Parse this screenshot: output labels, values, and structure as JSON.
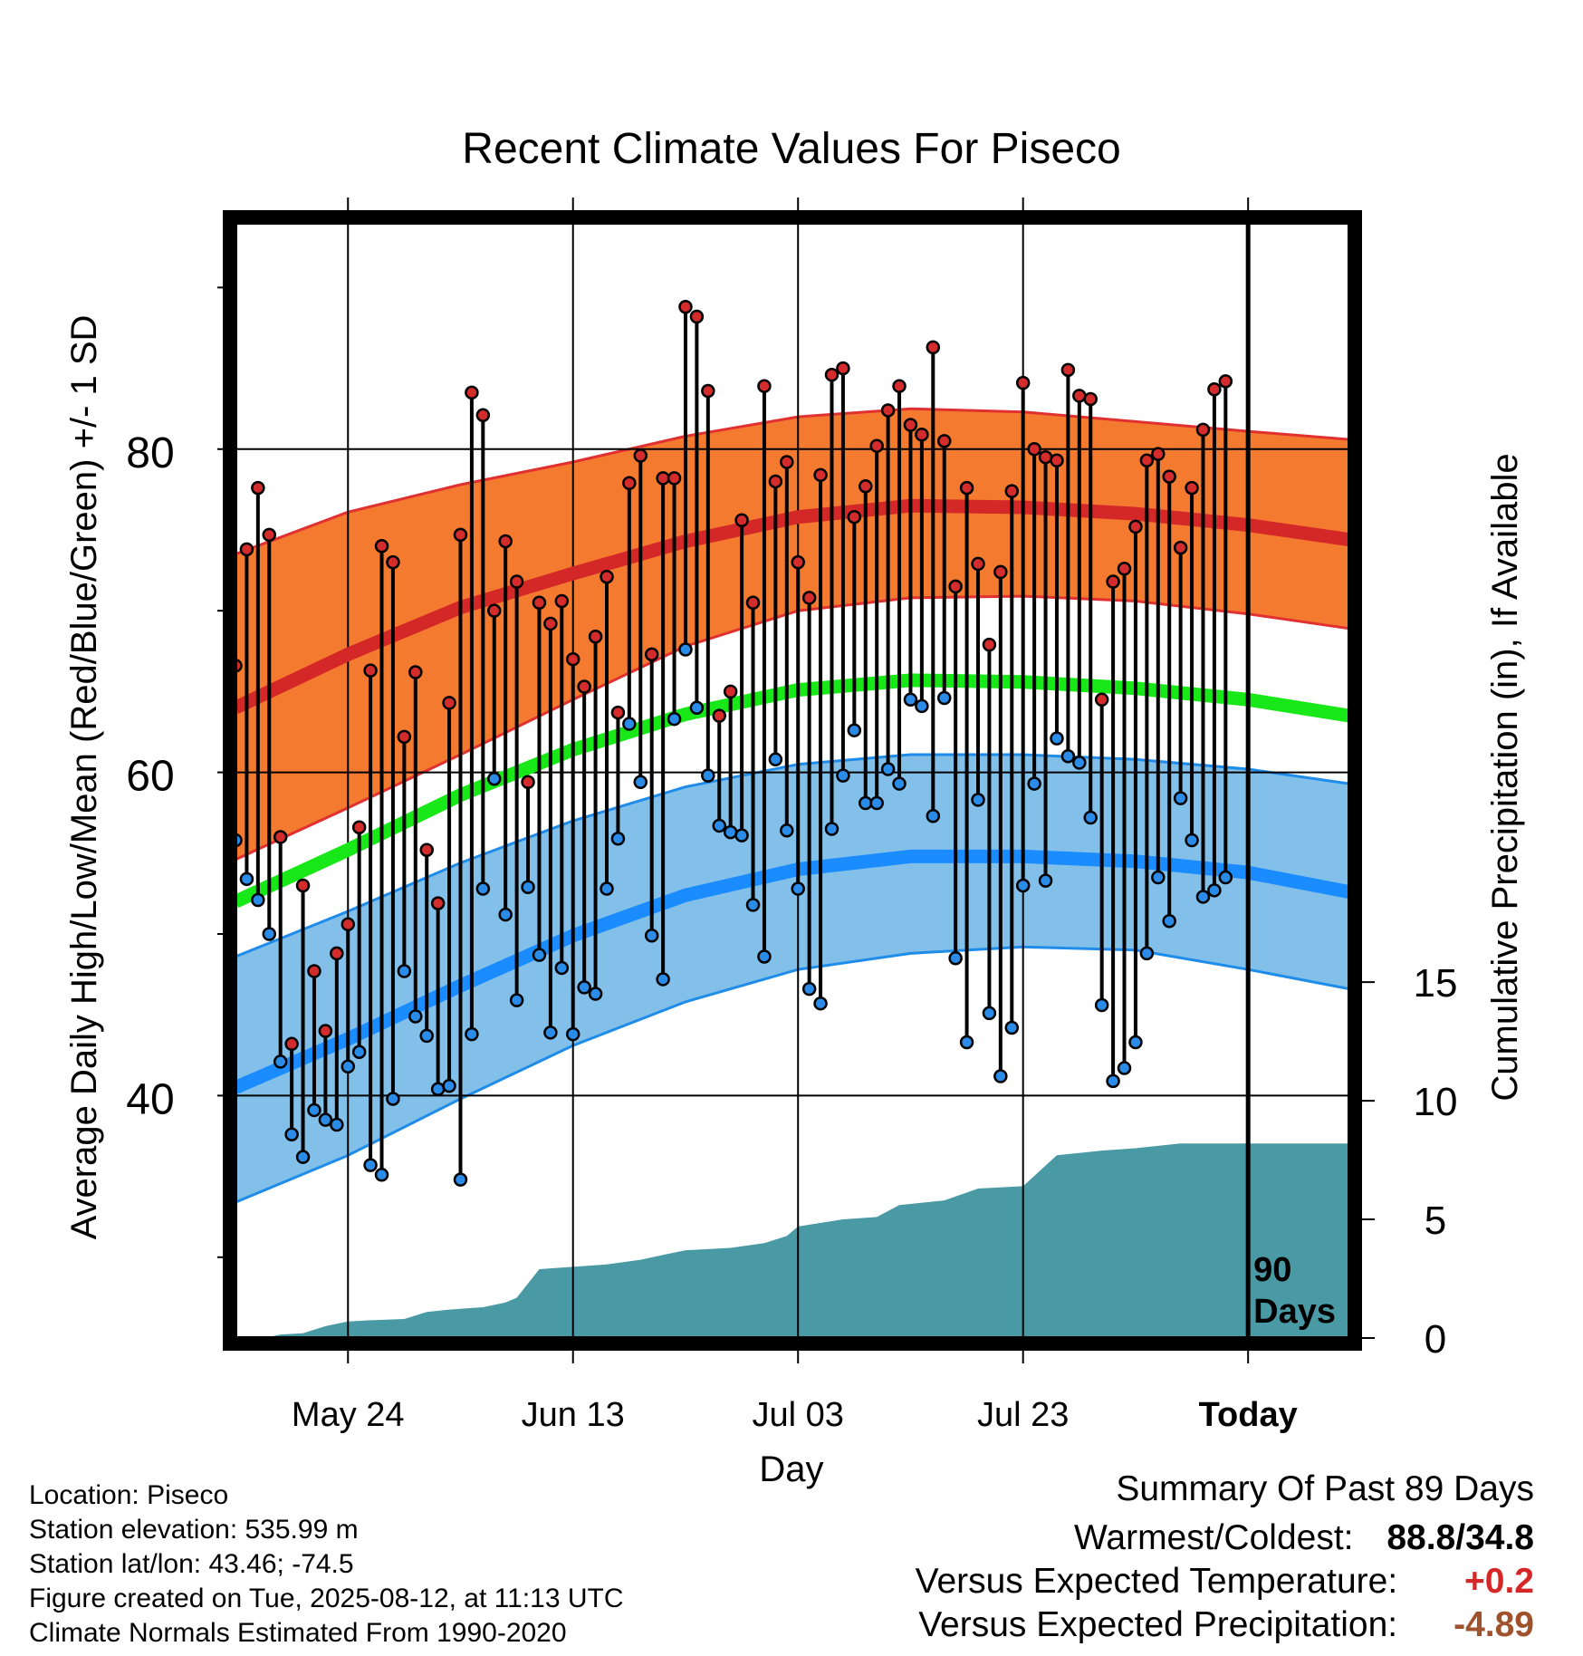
{
  "chart_data": {
    "type": "line",
    "title": "Recent Climate Values For Piseco",
    "xlabel": "Day",
    "ylabel_left": "Average Daily High/Low/Mean (Red/Blue/Green) +/- 1 SD",
    "ylabel_right": "Cumulative Precipitation (in), If Available",
    "x_tick_labels": [
      "May 24",
      "Jun 13",
      "Jul 03",
      "Jul 23",
      "Today"
    ],
    "x_tick_days": [
      10,
      30,
      50,
      70,
      90
    ],
    "xlim": [
      0,
      99
    ],
    "ylim_left": [
      25,
      94
    ],
    "yticks_left": [
      40,
      60,
      80
    ],
    "ylim_right": [
      0,
      47
    ],
    "yticks_right": [
      0,
      5,
      10,
      15
    ],
    "today_day": 90,
    "today_label_line1": "90",
    "today_label_line2": "Days",
    "grid": true,
    "daily_high": [
      66.6,
      73.8,
      77.6,
      74.7,
      56.0,
      43.2,
      53.0,
      47.7,
      44.0,
      48.8,
      50.6,
      56.6,
      66.3,
      74.0,
      73.0,
      62.2,
      66.2,
      55.2,
      51.9,
      64.3,
      74.7,
      83.5,
      82.1,
      70.0,
      74.3,
      71.8,
      59.4,
      70.5,
      69.2,
      70.6,
      67.0,
      65.3,
      68.4,
      72.1,
      63.7,
      77.9,
      79.6,
      67.3,
      78.2,
      78.2,
      88.8,
      88.2,
      83.6,
      63.5,
      65.0,
      75.6,
      70.5,
      83.9,
      78.0,
      79.2,
      73.0,
      70.8,
      78.4,
      84.6,
      85.0,
      75.8,
      77.7,
      80.2,
      82.4,
      83.9,
      81.5,
      80.9,
      86.3,
      80.5,
      71.5,
      77.6,
      72.9,
      67.9,
      72.4,
      77.4,
      84.1,
      80.0,
      79.5,
      79.3,
      84.9,
      83.3,
      83.1,
      64.5,
      71.8,
      72.6,
      75.2,
      79.3,
      79.7,
      78.3,
      73.9,
      77.6,
      81.2,
      83.7,
      84.2
    ],
    "daily_low": [
      55.8,
      53.4,
      52.1,
      50.0,
      42.1,
      37.6,
      36.2,
      39.1,
      38.5,
      38.2,
      41.8,
      42.7,
      35.7,
      35.1,
      39.8,
      47.7,
      44.9,
      43.7,
      40.4,
      40.6,
      34.8,
      43.8,
      52.8,
      59.6,
      51.2,
      45.9,
      52.9,
      48.7,
      43.9,
      47.9,
      43.8,
      46.7,
      46.3,
      52.8,
      55.9,
      63.0,
      59.4,
      49.9,
      47.2,
      63.3,
      67.6,
      64.0,
      59.8,
      56.7,
      56.3,
      56.1,
      51.8,
      48.6,
      60.8,
      56.4,
      52.8,
      46.6,
      45.7,
      56.5,
      59.8,
      62.6,
      58.1,
      58.1,
      60.2,
      59.3,
      64.5,
      64.1,
      57.3,
      64.6,
      48.5,
      43.3,
      58.3,
      45.1,
      41.2,
      44.2,
      53.0,
      59.3,
      53.3,
      62.1,
      61.0,
      60.6,
      57.2,
      45.6,
      40.9,
      41.7,
      43.3,
      48.8,
      53.5,
      50.8,
      58.4,
      55.8,
      52.3,
      52.7,
      53.5
    ],
    "normal_high": [
      {
        "x": 0,
        "y": 64.0
      },
      {
        "x": 10,
        "y": 67.3
      },
      {
        "x": 20,
        "y": 70.2
      },
      {
        "x": 30,
        "y": 72.3
      },
      {
        "x": 40,
        "y": 74.3
      },
      {
        "x": 50,
        "y": 75.8
      },
      {
        "x": 60,
        "y": 76.5
      },
      {
        "x": 70,
        "y": 76.4
      },
      {
        "x": 80,
        "y": 76.0
      },
      {
        "x": 90,
        "y": 75.3
      },
      {
        "x": 99,
        "y": 74.4
      }
    ],
    "normal_high_upper": [
      {
        "x": 0,
        "y": 73.5
      },
      {
        "x": 10,
        "y": 76.1
      },
      {
        "x": 20,
        "y": 77.8
      },
      {
        "x": 30,
        "y": 79.2
      },
      {
        "x": 40,
        "y": 80.8
      },
      {
        "x": 50,
        "y": 82.0
      },
      {
        "x": 60,
        "y": 82.5
      },
      {
        "x": 70,
        "y": 82.3
      },
      {
        "x": 80,
        "y": 81.7
      },
      {
        "x": 90,
        "y": 81.1
      },
      {
        "x": 99,
        "y": 80.6
      }
    ],
    "normal_high_lower": [
      {
        "x": 0,
        "y": 54.6
      },
      {
        "x": 10,
        "y": 57.8
      },
      {
        "x": 20,
        "y": 61.1
      },
      {
        "x": 30,
        "y": 64.5
      },
      {
        "x": 40,
        "y": 67.8
      },
      {
        "x": 50,
        "y": 70.0
      },
      {
        "x": 60,
        "y": 70.8
      },
      {
        "x": 70,
        "y": 70.9
      },
      {
        "x": 80,
        "y": 70.6
      },
      {
        "x": 90,
        "y": 69.8
      },
      {
        "x": 99,
        "y": 68.9
      }
    ],
    "normal_mean": [
      {
        "x": 0,
        "y": 52.0
      },
      {
        "x": 10,
        "y": 55.2
      },
      {
        "x": 20,
        "y": 58.6
      },
      {
        "x": 30,
        "y": 61.4
      },
      {
        "x": 40,
        "y": 63.6
      },
      {
        "x": 50,
        "y": 65.1
      },
      {
        "x": 60,
        "y": 65.7
      },
      {
        "x": 70,
        "y": 65.6
      },
      {
        "x": 80,
        "y": 65.2
      },
      {
        "x": 90,
        "y": 64.5
      },
      {
        "x": 99,
        "y": 63.5
      }
    ],
    "normal_low": [
      {
        "x": 0,
        "y": 40.5
      },
      {
        "x": 10,
        "y": 43.5
      },
      {
        "x": 20,
        "y": 46.8
      },
      {
        "x": 30,
        "y": 49.9
      },
      {
        "x": 40,
        "y": 52.4
      },
      {
        "x": 50,
        "y": 54.0
      },
      {
        "x": 60,
        "y": 54.8
      },
      {
        "x": 70,
        "y": 54.8
      },
      {
        "x": 80,
        "y": 54.5
      },
      {
        "x": 90,
        "y": 53.8
      },
      {
        "x": 99,
        "y": 52.6
      }
    ],
    "normal_low_upper": [
      {
        "x": 0,
        "y": 48.6
      },
      {
        "x": 10,
        "y": 51.4
      },
      {
        "x": 20,
        "y": 54.4
      },
      {
        "x": 30,
        "y": 57.0
      },
      {
        "x": 40,
        "y": 59.1
      },
      {
        "x": 50,
        "y": 60.5
      },
      {
        "x": 60,
        "y": 61.1
      },
      {
        "x": 70,
        "y": 61.1
      },
      {
        "x": 80,
        "y": 60.8
      },
      {
        "x": 90,
        "y": 60.2
      },
      {
        "x": 99,
        "y": 59.3
      }
    ],
    "normal_low_lower": [
      {
        "x": 0,
        "y": 33.4
      },
      {
        "x": 10,
        "y": 36.3
      },
      {
        "x": 20,
        "y": 39.8
      },
      {
        "x": 30,
        "y": 43.1
      },
      {
        "x": 40,
        "y": 45.8
      },
      {
        "x": 50,
        "y": 47.8
      },
      {
        "x": 60,
        "y": 48.8
      },
      {
        "x": 70,
        "y": 49.2
      },
      {
        "x": 80,
        "y": 49.0
      },
      {
        "x": 90,
        "y": 47.8
      },
      {
        "x": 99,
        "y": 46.6
      }
    ],
    "cumulative_precip": [
      {
        "x": 0,
        "y": 0.0
      },
      {
        "x": 3,
        "y": 0.05
      },
      {
        "x": 4,
        "y": 0.15
      },
      {
        "x": 6,
        "y": 0.2
      },
      {
        "x": 8,
        "y": 0.5
      },
      {
        "x": 10,
        "y": 0.7
      },
      {
        "x": 12,
        "y": 0.75
      },
      {
        "x": 15,
        "y": 0.8
      },
      {
        "x": 17,
        "y": 1.1
      },
      {
        "x": 19,
        "y": 1.2
      },
      {
        "x": 22,
        "y": 1.3
      },
      {
        "x": 24,
        "y": 1.5
      },
      {
        "x": 25,
        "y": 1.7
      },
      {
        "x": 27,
        "y": 2.9
      },
      {
        "x": 30,
        "y": 3.0
      },
      {
        "x": 33,
        "y": 3.1
      },
      {
        "x": 36,
        "y": 3.3
      },
      {
        "x": 38,
        "y": 3.5
      },
      {
        "x": 40,
        "y": 3.7
      },
      {
        "x": 44,
        "y": 3.8
      },
      {
        "x": 47,
        "y": 4.0
      },
      {
        "x": 49,
        "y": 4.3
      },
      {
        "x": 50,
        "y": 4.7
      },
      {
        "x": 54,
        "y": 5.0
      },
      {
        "x": 57,
        "y": 5.1
      },
      {
        "x": 59,
        "y": 5.6
      },
      {
        "x": 63,
        "y": 5.8
      },
      {
        "x": 66,
        "y": 6.3
      },
      {
        "x": 70,
        "y": 6.4
      },
      {
        "x": 73,
        "y": 7.7
      },
      {
        "x": 77,
        "y": 7.9
      },
      {
        "x": 80,
        "y": 8.0
      },
      {
        "x": 84,
        "y": 8.2
      },
      {
        "x": 99,
        "y": 8.2
      }
    ]
  },
  "info": {
    "location": "Location: Piseco",
    "elevation": "Station elevation: 535.99 m",
    "latlon": "Station lat/lon: 43.46; -74.5",
    "created": "Figure created on Tue, 2025-08-12, at 11:13 UTC",
    "normals": "Climate Normals Estimated From 1990-2020"
  },
  "summary": {
    "heading": "Summary Of Past 89 Days",
    "warm_cold_label": "Warmest/Coldest:",
    "warm_cold_value": "88.8/34.8",
    "temp_label": "Versus Expected Temperature:",
    "temp_value": "+0.2",
    "temp_color": "#d62728",
    "precip_label": "Versus Expected Precipitation:",
    "precip_value": "-4.89",
    "precip_color": "#a0522d"
  }
}
